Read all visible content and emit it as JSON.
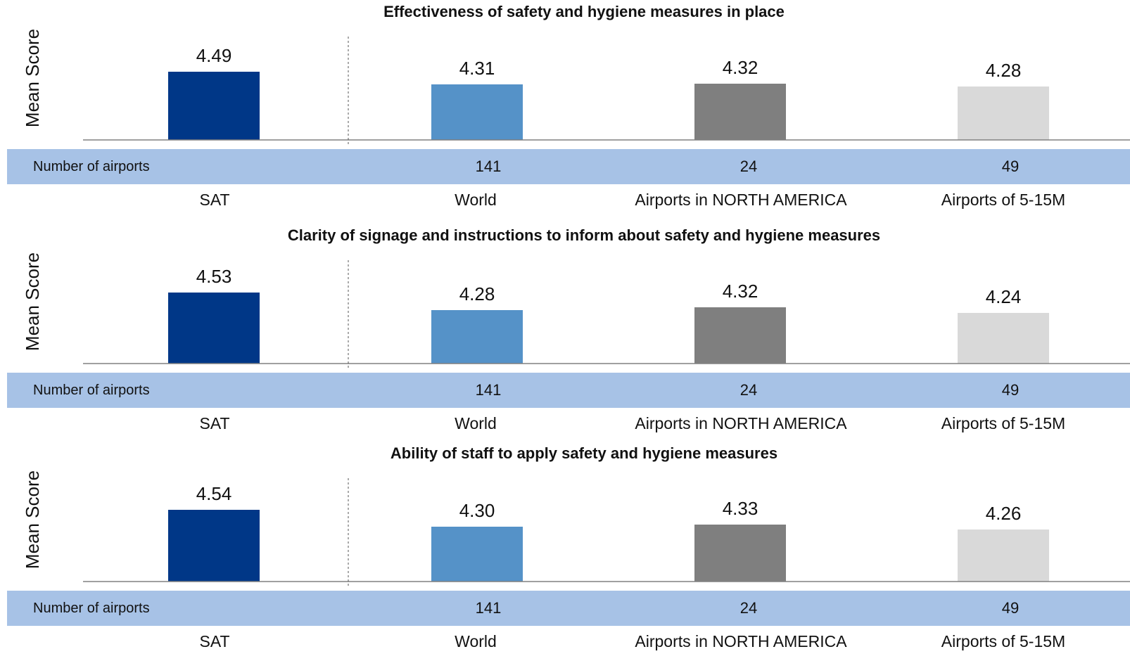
{
  "colors": {
    "SAT": "#003787",
    "World": "#5592c8",
    "Airports in NORTH AMERICA": "#7f7f7f",
    "Airports of 5-15M": "#d9d9d9",
    "count_band": "#a7c2e6"
  },
  "count_row_label": "Number of airports",
  "chart_data": [
    {
      "type": "bar",
      "title": "Effectiveness of safety and hygiene measures in place",
      "ylabel": "Mean Score",
      "categories": [
        "SAT",
        "World",
        "Airports in NORTH AMERICA",
        "Airports of 5-15M"
      ],
      "values": [
        4.49,
        4.31,
        4.32,
        4.28
      ],
      "value_labels": [
        "4.49",
        "4.31",
        "4.32",
        "4.28"
      ],
      "number_of_airports": [
        "",
        "141",
        "24",
        "49"
      ]
    },
    {
      "type": "bar",
      "title": "Clarity of signage and instructions to inform about safety and hygiene measures",
      "ylabel": "Mean Score",
      "categories": [
        "SAT",
        "World",
        "Airports in NORTH AMERICA",
        "Airports of 5-15M"
      ],
      "values": [
        4.53,
        4.28,
        4.32,
        4.24
      ],
      "value_labels": [
        "4.53",
        "4.28",
        "4.32",
        "4.24"
      ],
      "number_of_airports": [
        "",
        "141",
        "24",
        "49"
      ]
    },
    {
      "type": "bar",
      "title": "Ability of staff to apply safety and hygiene measures",
      "ylabel": "Mean Score",
      "categories": [
        "SAT",
        "World",
        "Airports in NORTH AMERICA",
        "Airports of 5-15M"
      ],
      "values": [
        4.54,
        4.3,
        4.33,
        4.26
      ],
      "value_labels": [
        "4.54",
        "4.30",
        "4.33",
        "4.26"
      ],
      "number_of_airports": [
        "",
        "141",
        "24",
        "49"
      ]
    }
  ]
}
